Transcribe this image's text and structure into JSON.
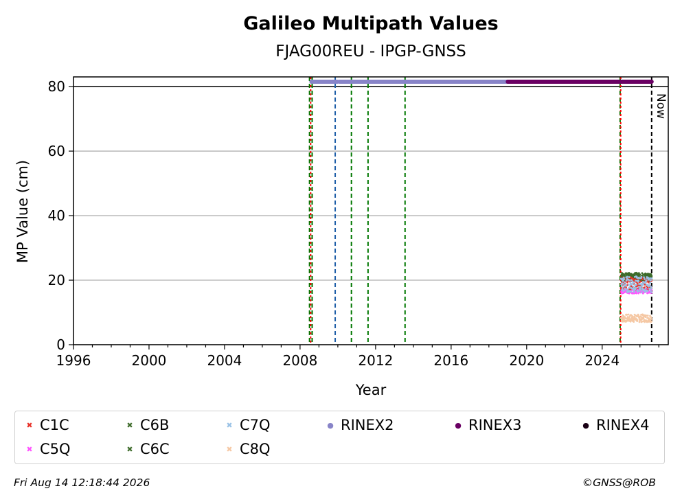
{
  "chart_data": {
    "type": "scatter",
    "title": "Galileo Multipath Values",
    "subtitle": "FJAG00REU - IPGP-GNSS",
    "xlabel": "Year",
    "ylabel": "MP Value (cm)",
    "xlim": [
      1996,
      2027.5
    ],
    "ylim": [
      0,
      83
    ],
    "x_ticks": [
      "1996",
      "2000",
      "2004",
      "2008",
      "2012",
      "2016",
      "2020",
      "2024"
    ],
    "y_ticks": [
      "0",
      "20",
      "40",
      "60",
      "80"
    ],
    "grid": "horizontal",
    "now_label": "Now",
    "now_year": 2026.62,
    "vertical_lines": [
      {
        "x": 2008.5,
        "color": "#007700"
      },
      {
        "x": 2008.56,
        "color": "#ff0000"
      },
      {
        "x": 2008.64,
        "color": "#007700"
      },
      {
        "x": 2009.86,
        "color": "#1f5fa8"
      },
      {
        "x": 2010.72,
        "color": "#007700"
      },
      {
        "x": 2011.6,
        "color": "#007700"
      },
      {
        "x": 2013.56,
        "color": "#007700"
      },
      {
        "x": 2024.95,
        "color": "#007700"
      },
      {
        "x": 2024.98,
        "color": "#ff0000"
      }
    ],
    "series": [
      {
        "name": "C1C",
        "color": "#e8332a",
        "marker": "x",
        "x_range": [
          2025.0,
          2026.62
        ],
        "y_center": 19.0,
        "y_spread": 2.0
      },
      {
        "name": "C6B",
        "color": "#3d6b2a",
        "marker": "x",
        "x_range": [
          2025.0,
          2026.62
        ],
        "y_center": 21.3,
        "y_spread": 1.0
      },
      {
        "name": "C7Q",
        "color": "#9ac2e6",
        "marker": "x",
        "x_range": [
          2025.0,
          2026.62
        ],
        "y_center": 18.7,
        "y_spread": 2.5
      },
      {
        "name": "RINEX2",
        "color": "#8884c8",
        "marker": "o",
        "x_range": [
          2008.6,
          2019.0
        ],
        "y_center": 81.5,
        "y_spread": 0
      },
      {
        "name": "RINEX3",
        "color": "#6a0063",
        "marker": "o",
        "x_range": [
          2019.0,
          2026.62
        ],
        "y_center": 81.5,
        "y_spread": 0
      },
      {
        "name": "RINEX4",
        "color": "#1a0014",
        "marker": "o",
        "x_range": [],
        "y_center": 81.5,
        "y_spread": 0
      },
      {
        "name": "C5Q",
        "color": "#ff55ff",
        "marker": "x",
        "x_range": [
          2025.0,
          2026.62
        ],
        "y_center": 16.7,
        "y_spread": 0.8
      },
      {
        "name": "C6C",
        "color": "#3d6b2a",
        "marker": "x",
        "x_range": [
          2025.0,
          2026.62
        ],
        "y_center": 20.8,
        "y_spread": 1.2
      },
      {
        "name": "C8Q",
        "color": "#f5c8a4",
        "marker": "x",
        "x_range": [
          2025.0,
          2026.62
        ],
        "y_center": 8.2,
        "y_spread": 1.2
      }
    ],
    "rinex2_gap": [
      2010.0,
      2010.08
    ]
  },
  "legend": {
    "items": [
      {
        "label": "C1C",
        "color": "#e8332a",
        "glyph": "✖"
      },
      {
        "label": "C6B",
        "color": "#3d6b2a",
        "glyph": "✖"
      },
      {
        "label": "C7Q",
        "color": "#9ac2e6",
        "glyph": "✖"
      },
      {
        "label": "RINEX2",
        "color": "#8884c8",
        "glyph": "●"
      },
      {
        "label": "RINEX3",
        "color": "#6a0063",
        "glyph": "●"
      },
      {
        "label": "RINEX4",
        "color": "#1a0014",
        "glyph": "●"
      },
      {
        "label": "C5Q",
        "color": "#ff55ff",
        "glyph": "✖"
      },
      {
        "label": "C6C",
        "color": "#3d6b2a",
        "glyph": "✖"
      },
      {
        "label": "C8Q",
        "color": "#f5c8a4",
        "glyph": "✖"
      }
    ]
  },
  "footer": {
    "timestamp": "Fri Aug 14 12:18:44 2026",
    "credit": "©GNSS@ROB"
  }
}
